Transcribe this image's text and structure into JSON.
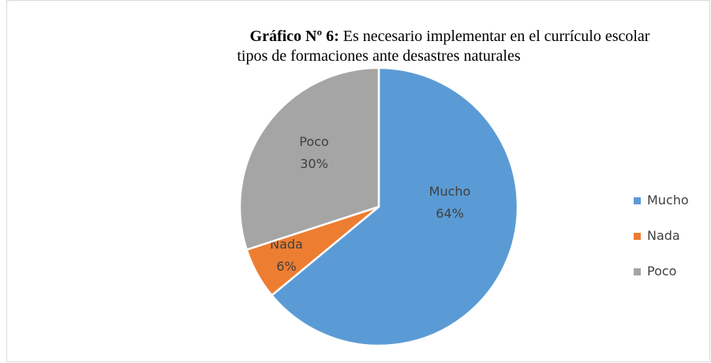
{
  "chart_data": {
    "type": "pie",
    "title_prefix": "Gráfico Nº 6:",
    "title_lines": [
      "Es necesario implementar en el currículo escolar",
      "tipos de formaciones ante desastres naturales"
    ],
    "categories": [
      "Mucho",
      "Nada",
      "Poco"
    ],
    "values": [
      64,
      6,
      30
    ],
    "value_labels": [
      "64%",
      "6%",
      "30%"
    ],
    "colors": [
      "#5b9bd5",
      "#ed7d31",
      "#a5a5a5"
    ],
    "legend": "right"
  }
}
